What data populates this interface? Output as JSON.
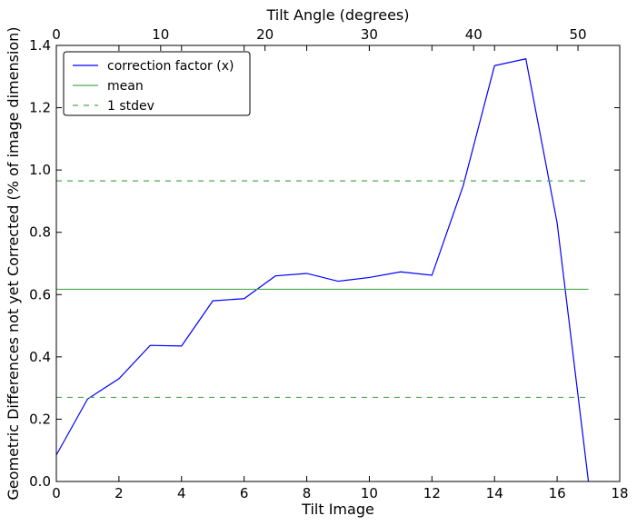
{
  "chart_data": {
    "type": "line",
    "xlabel": "Tilt Image",
    "ylabel": "Geometric Differences not yet Corrected (% of image dimension)",
    "top_xlabel": "Tilt Angle (degrees)",
    "xlim": [
      0,
      18
    ],
    "ylim": [
      0,
      1.4
    ],
    "top_xlim": [
      0,
      54
    ],
    "xticks": [
      "0",
      "2",
      "4",
      "6",
      "8",
      "10",
      "12",
      "14",
      "16",
      "18"
    ],
    "yticks": [
      "0.0",
      "0.2",
      "0.4",
      "0.6",
      "0.8",
      "1.0",
      "1.2",
      "1.4"
    ],
    "top_xticks": [
      "0",
      "10",
      "20",
      "30",
      "40",
      "50"
    ],
    "legend_position": "top-left",
    "series": [
      {
        "name": "correction factor (x)",
        "color": "#0000ff",
        "style": "solid",
        "x": [
          0,
          1,
          2,
          3,
          4,
          5,
          6,
          7,
          8,
          9,
          10,
          11,
          12,
          13,
          14,
          15,
          16,
          17
        ],
        "y": [
          0.085,
          0.265,
          0.33,
          0.437,
          0.435,
          0.58,
          0.587,
          0.66,
          0.668,
          0.643,
          0.655,
          0.673,
          0.662,
          0.95,
          1.335,
          1.357,
          0.83,
          0.0
        ]
      },
      {
        "name": "mean",
        "color": "#4daa4d",
        "style": "solid",
        "x": [
          0,
          17
        ],
        "y": [
          0.617,
          0.617
        ]
      },
      {
        "name": "1 stdev",
        "color": "#4daa4d",
        "style": "dashed",
        "x": [
          0,
          17
        ],
        "y": [
          0.965,
          0.965
        ]
      },
      {
        "name": "",
        "color": "#4daa4d",
        "style": "dashed",
        "x": [
          0,
          17
        ],
        "y": [
          0.27,
          0.27
        ]
      }
    ]
  }
}
